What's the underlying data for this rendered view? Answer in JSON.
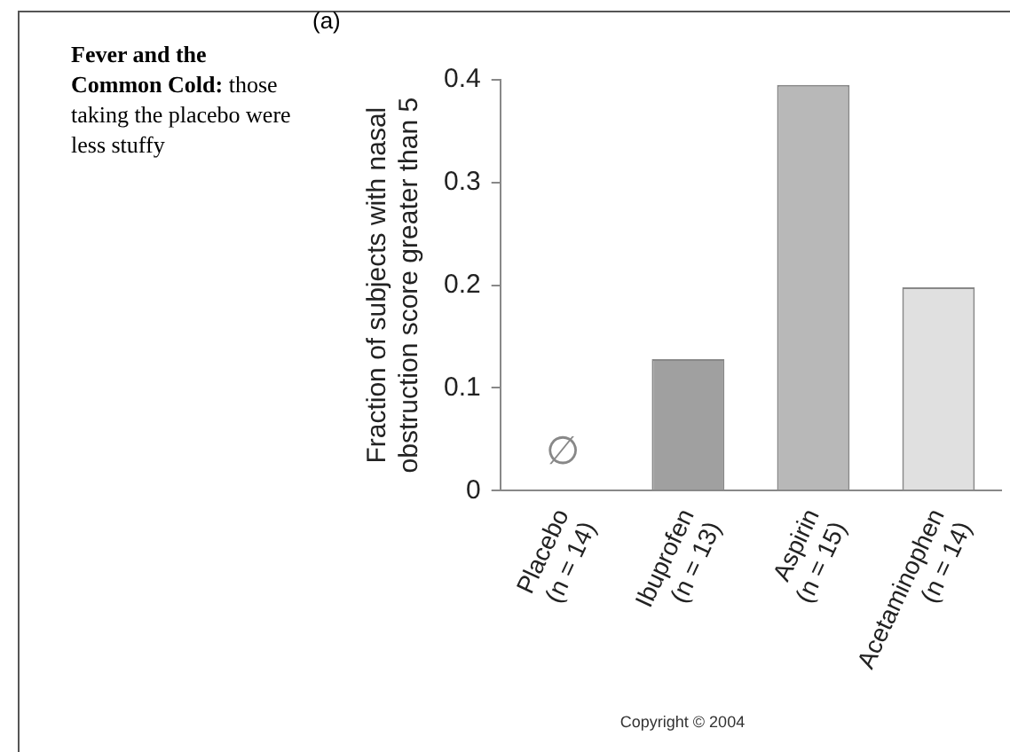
{
  "chart_data": {
    "type": "bar",
    "title": "Fever and the Common Cold:",
    "subtitle": "those taking the placebo were less stuffy",
    "ylabel": "Fraction of subjects with nasal\nobstruction score greater than 5",
    "categories": [
      "Placebo\n(n = 14)",
      "Ibuprofen\n(n = 13)",
      "Aspirin\n(n = 15)",
      "Acetaminophen\n(n = 14)"
    ],
    "values": [
      0,
      0.128,
      0.395,
      0.198
    ],
    "colors": [
      "#d0d0d0",
      "#a0a0a0",
      "#b8b8b8",
      "#e0e0e0"
    ],
    "ylim": [
      0,
      0.4
    ],
    "yticks": [
      0,
      0.1,
      0.2,
      0.3,
      0.4
    ],
    "grid": false,
    "legend": false,
    "annotations": [
      {
        "text": "∅",
        "x": "Placebo\n(n = 14)",
        "y": 0
      },
      "(a)",
      "Copyright © 2004"
    ]
  }
}
